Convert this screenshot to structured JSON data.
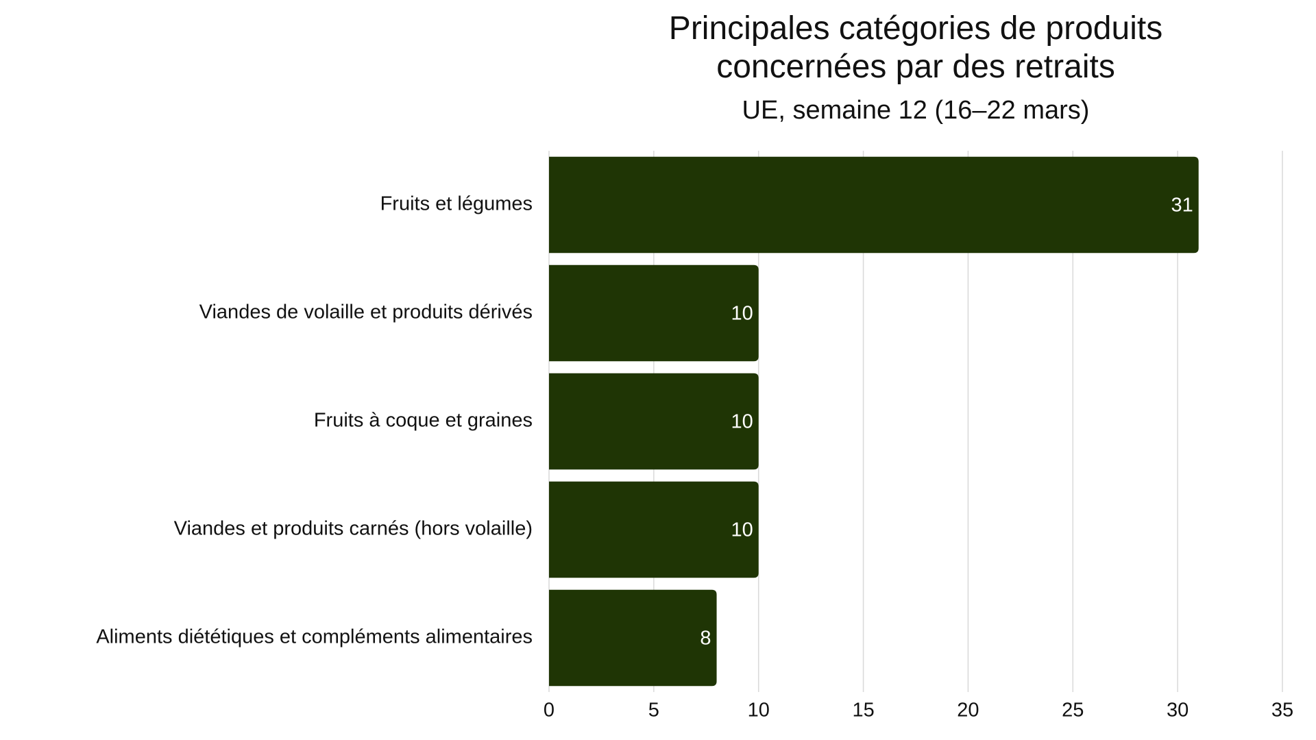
{
  "chart_data": {
    "type": "bar",
    "orientation": "horizontal",
    "title": "Principales catégories de produits concernées par des retraits",
    "subtitle": "UE, semaine 12 (16–22 mars)",
    "categories": [
      "Fruits et légumes",
      "Viandes de volaille et produits dérivés",
      "Fruits à coque et graines",
      "Viandes et produits carnés (hors volaille)",
      "Aliments diététiques et compléments alimentaires"
    ],
    "values": [
      31,
      10,
      10,
      10,
      8
    ],
    "color": "#1f3505",
    "xlim": [
      0,
      35
    ],
    "xticks": [
      0,
      5,
      10,
      15,
      20,
      25,
      30,
      35
    ],
    "grid": true
  }
}
